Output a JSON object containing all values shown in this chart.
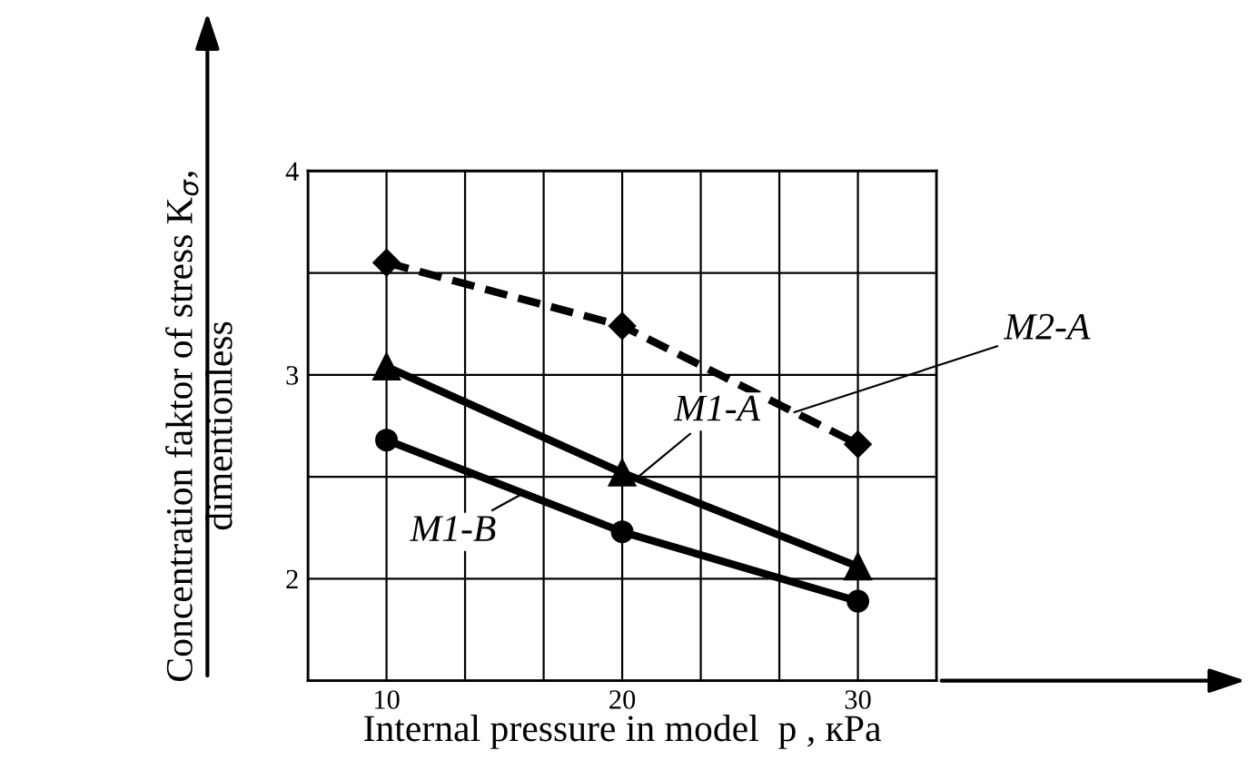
{
  "chart_data": {
    "type": "line",
    "xlabel": "Internal pressure in model  p , кPa",
    "ylabel": "Concentration faktor of stress K$_{σ}$,\ndimentionless",
    "xlim": [
      6.667,
      33.333
    ],
    "xticks": [
      {
        "value": 6.667,
        "label": null
      },
      10,
      {
        "value": 13.333,
        "label": null
      },
      {
        "value": 16.667,
        "label": null
      },
      20,
      {
        "value": 23.333,
        "label": null
      },
      {
        "value": 26.667,
        "label": null
      },
      30,
      {
        "value": 33.333,
        "label": null
      }
    ],
    "ylim": [
      1.5,
      4
    ],
    "yticks": [
      {
        "value": 1.5,
        "label": null
      },
      2,
      {
        "value": 2.5,
        "label": null
      },
      3,
      {
        "value": 3.5,
        "label": null
      },
      4
    ],
    "grid": true,
    "x": [
      10,
      20,
      30
    ],
    "series": [
      {
        "name": "M2-A",
        "color": "#000000",
        "values": [
          3.55,
          3.24,
          2.66
        ],
        "marker": "diamond",
        "line_style": "dashed"
      },
      {
        "name": "M1-A",
        "color": "#000000",
        "values": [
          3.04,
          2.52,
          2.06
        ],
        "marker": "triangle",
        "line_style": "solid"
      },
      {
        "name": "M1-B",
        "color": "#000000",
        "values": [
          2.68,
          2.23,
          1.89
        ],
        "marker": "circle",
        "line_style": "solid"
      }
    ]
  }
}
